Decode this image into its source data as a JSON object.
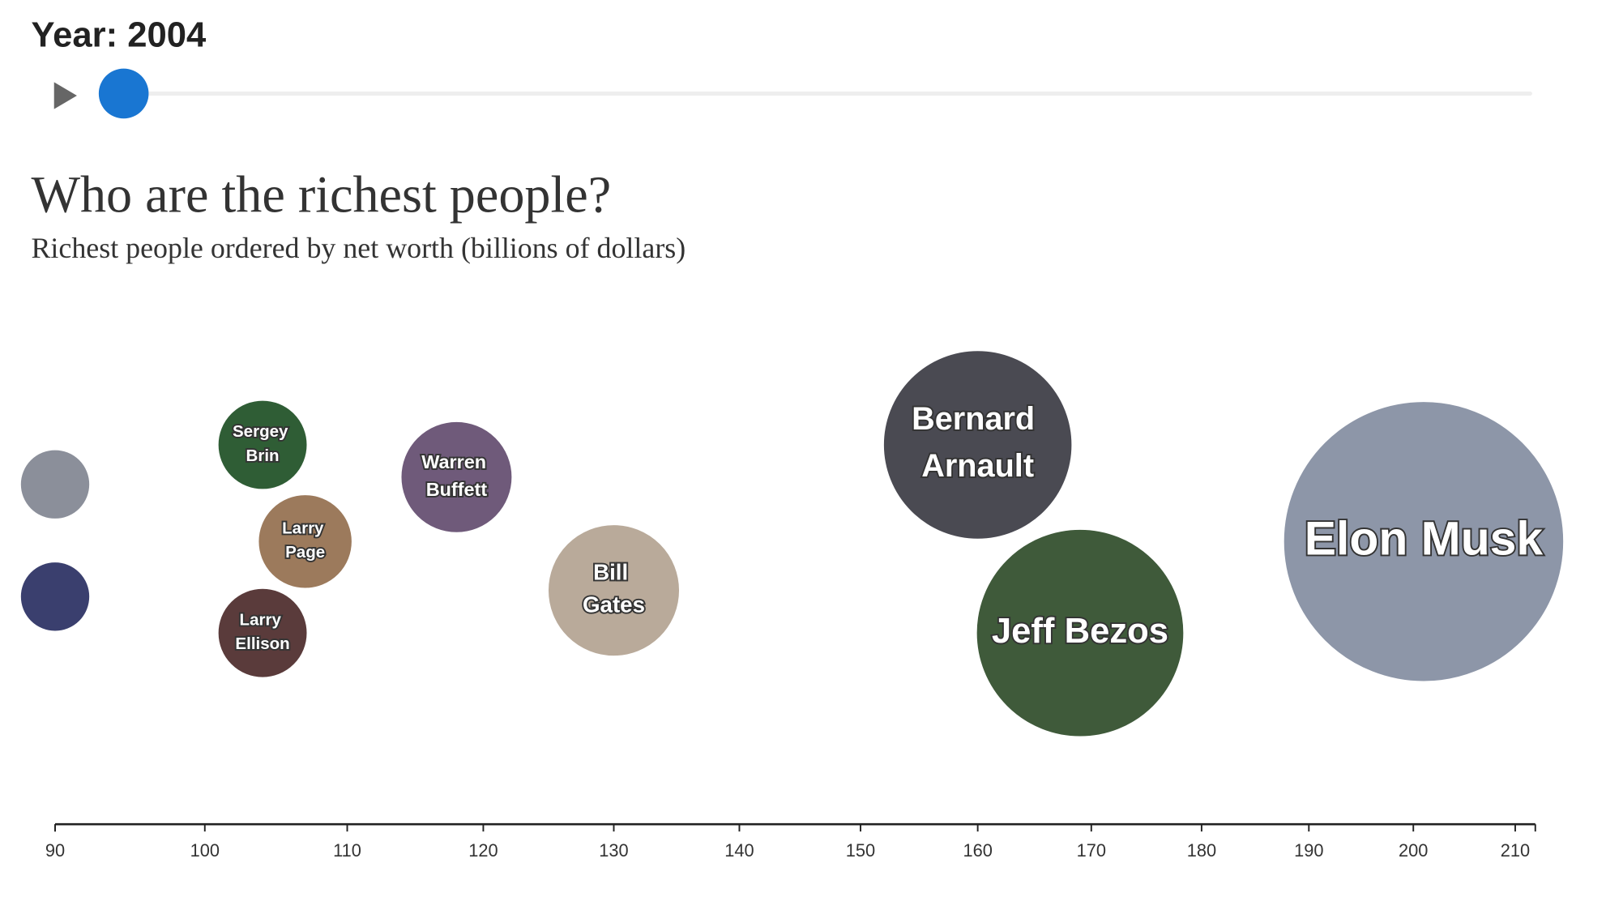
{
  "header": {
    "slider_label": "Year: 2004"
  },
  "chart_data": {
    "type": "bubble",
    "title": "Who are the richest people?",
    "subtitle": "Richest people ordered by net worth (billions of dollars)",
    "labels": [
      null,
      null,
      "Sergey Brin",
      "Larry Page",
      "Larry Ellison",
      "Warren Buffett",
      "Bill Gates",
      "Bernard Arnault",
      "Jeff Bezos",
      "Elon Musk"
    ],
    "values": [
      90,
      90,
      104,
      107,
      104,
      118,
      130,
      160,
      169,
      201
    ],
    "colors": [
      "#8b8f9a",
      "#3a3f6e",
      "#2f5d35",
      "#9c7a5c",
      "#5a3b3b",
      "#6f5a7a",
      "#b9aa9a",
      "#4a4a52",
      "#3f5a3a",
      "#8d96a8"
    ],
    "x_scale": "sqrt",
    "xlim": [
      90,
      212
    ],
    "xticks": [
      90,
      100,
      110,
      120,
      130,
      140,
      150,
      160,
      170,
      180,
      190,
      200,
      210
    ]
  }
}
